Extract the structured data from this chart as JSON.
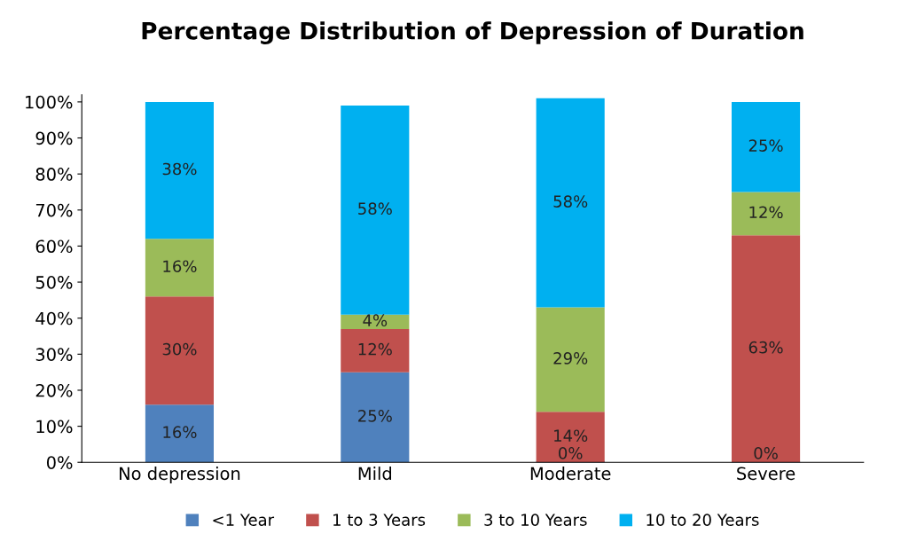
{
  "chart_data": {
    "type": "bar",
    "title": "Percentage Distribution of Depression of Duration",
    "categories": [
      "No depression",
      "Mild",
      "Moderate",
      "Severe"
    ],
    "stacked": true,
    "ylim": [
      0,
      102
    ],
    "yticks": [
      {
        "value": 0,
        "label": "0%"
      },
      {
        "value": 10,
        "label": "10%"
      },
      {
        "value": 20,
        "label": "20%"
      },
      {
        "value": 30,
        "label": "30%"
      },
      {
        "value": 40,
        "label": "40%"
      },
      {
        "value": 50,
        "label": "50%"
      },
      {
        "value": 60,
        "label": "60%"
      },
      {
        "value": 70,
        "label": "70%"
      },
      {
        "value": 80,
        "label": "80%"
      },
      {
        "value": 90,
        "label": "90%"
      },
      {
        "value": 100,
        "label": "100%"
      }
    ],
    "grid": false,
    "legend": "bottom",
    "series": [
      {
        "name": "<1 Year",
        "color": "#4f81bd",
        "values": [
          16,
          25,
          0,
          0
        ],
        "value_labels": [
          "16%",
          "25%",
          "0%",
          "0%"
        ]
      },
      {
        "name": "1 to 3 Years",
        "color": "#c0504d",
        "values": [
          30,
          12,
          14,
          63
        ],
        "value_labels": [
          "30%",
          "12%",
          "14%",
          "63%"
        ]
      },
      {
        "name": "3 to 10 Years",
        "color": "#9bbb59",
        "values": [
          16,
          4,
          29,
          12
        ],
        "value_labels": [
          "16%",
          "4%",
          "29%",
          "12%"
        ]
      },
      {
        "name": "10 to 20 Years",
        "color": "#00b0f0",
        "values": [
          38,
          58,
          58,
          25
        ],
        "value_labels": [
          "38%",
          "58%",
          "58%",
          "25%"
        ]
      }
    ]
  }
}
